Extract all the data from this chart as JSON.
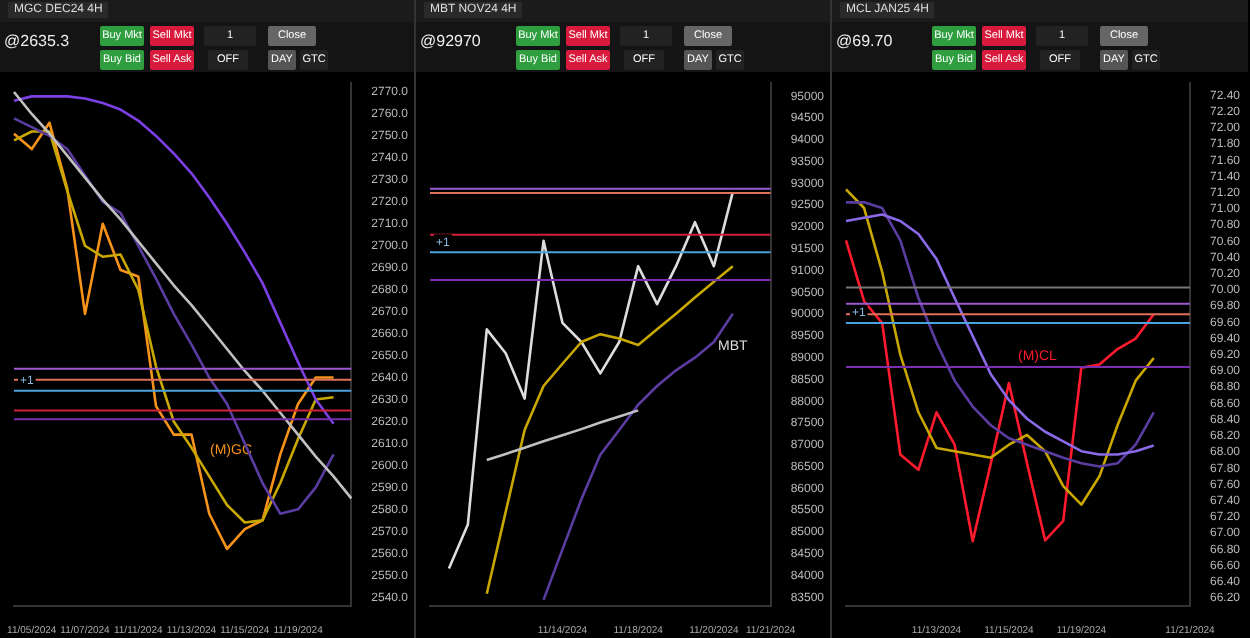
{
  "chart_data": [
    {
      "type": "line",
      "title": "MGC DEC24 4H",
      "subtitle": "@2635.3",
      "marker": "none",
      "grid": false,
      "legend": false,
      "annotations": [
        "Buy Mkt",
        "Sell Mkt",
        "Buy Bid",
        "Sell Ask",
        "1",
        "Close",
        "OFF",
        "DAY",
        "GTC",
        "(M)GC",
        {
          "text": "+1",
          "y": 2634
        }
      ],
      "categories": [
        null,
        "11/05/2024",
        null,
        null,
        "11/07/2024",
        null,
        null,
        "11/11/2024",
        null,
        null,
        "11/13/2024",
        null,
        null,
        "11/15/2024",
        null,
        null,
        "11/19/2024",
        null,
        null,
        null
      ],
      "ylim": [
        2536,
        2774
      ],
      "yticks": [
        {
          "value": 2540,
          "label": "2540.0"
        },
        {
          "value": 2550,
          "label": "2550.0"
        },
        {
          "value": 2560,
          "label": "2560.0"
        },
        {
          "value": 2570,
          "label": "2570.0"
        },
        {
          "value": 2580,
          "label": "2580.0"
        },
        {
          "value": 2590,
          "label": "2590.0"
        },
        {
          "value": 2600,
          "label": "2600.0"
        },
        {
          "value": 2610,
          "label": "2610.0"
        },
        {
          "value": 2620,
          "label": "2620.0"
        },
        {
          "value": 2630,
          "label": "2630.0"
        },
        {
          "value": 2640,
          "label": "2640.0"
        },
        {
          "value": 2650,
          "label": "2650.0"
        },
        {
          "value": 2660,
          "label": "2660.0"
        },
        {
          "value": 2670,
          "label": "2670.0"
        },
        {
          "value": 2680,
          "label": "2680.0"
        },
        {
          "value": 2690,
          "label": "2690.0"
        },
        {
          "value": 2700,
          "label": "2700.0"
        },
        {
          "value": 2710,
          "label": "2710.0"
        },
        {
          "value": 2720,
          "label": "2720.0"
        },
        {
          "value": 2730,
          "label": "2730.0"
        },
        {
          "value": 2740,
          "label": "2740.0"
        },
        {
          "value": 2750,
          "label": "2750.0"
        },
        {
          "value": 2760,
          "label": "2760.0"
        },
        {
          "value": 2770,
          "label": "2770.0"
        }
      ],
      "ref_lines": [
        {
          "axis": "y",
          "value": 2644,
          "color": "#9b59d0"
        },
        {
          "axis": "y",
          "value": 2639,
          "color": "#e0705a"
        },
        {
          "axis": "y",
          "value": 2634,
          "color": "#4aa3df"
        },
        {
          "axis": "y",
          "value": 2625,
          "color": "#d0203a"
        },
        {
          "axis": "y",
          "value": 2621,
          "color": "#7a2fb0"
        }
      ],
      "series": [
        {
          "color": "#c0c0c0",
          "values": [
            2770,
            2760,
            2751,
            2741,
            2731,
            2721,
            2712,
            2702,
            2692,
            2682,
            2673,
            2663,
            2653,
            2643,
            2634,
            2624,
            2614,
            2604,
            2595,
            2585
          ]
        },
        {
          "color": "#7b3fe4",
          "values": [
            2766,
            2768,
            2768,
            2768,
            2767,
            2765,
            2762,
            2757,
            2750,
            2742,
            2733,
            2722,
            2710,
            2697,
            2683,
            2665,
            2647,
            2630,
            2619,
            null
          ]
        },
        {
          "color": "#5b3ca0",
          "values": [
            2758,
            2754,
            2750,
            2744,
            2732,
            2720,
            2715,
            2700,
            2685,
            2669,
            2655,
            2640,
            2628,
            2610,
            2592,
            2578,
            2580,
            2590,
            2605,
            null
          ]
        },
        {
          "color": "#c8a800",
          "values": [
            2748,
            2752,
            2752,
            2725,
            2700,
            2695,
            2696,
            2680,
            2645,
            2620,
            2608,
            2595,
            2582,
            2574,
            2575,
            2592,
            2612,
            2630,
            2631,
            null
          ]
        },
        {
          "color": "#f7931a",
          "values": [
            2751,
            2744,
            2756,
            2726,
            2669,
            2710,
            2689,
            2686,
            2627,
            2614,
            2614,
            2578,
            2562,
            2571,
            2575,
            2605,
            2628,
            2640,
            2640,
            null
          ]
        }
      ]
    },
    {
      "type": "line",
      "title": "MBT NOV24 4H",
      "subtitle": "@92970",
      "marker": "none",
      "grid": false,
      "legend": false,
      "annotations": [
        "Buy Mkt",
        "Sell Mkt",
        "Buy Bid",
        "Sell Ask",
        "1",
        "Close",
        "OFF",
        "DAY",
        "GTC",
        "MBT",
        {
          "text": "+1",
          "y": 91420
        }
      ],
      "categories": [
        null,
        null,
        null,
        null,
        null,
        null,
        null,
        "11/14/2024",
        null,
        null,
        null,
        "11/18/2024",
        null,
        null,
        null,
        "11/20/2024",
        null,
        null,
        "11/21/2024"
      ],
      "ylim": [
        83300,
        95300
      ],
      "yticks": [
        83500,
        84000,
        84500,
        85000,
        85500,
        86000,
        86500,
        87000,
        87500,
        88000,
        88500,
        89000,
        89500,
        90000,
        90500,
        91000,
        91500,
        92000,
        92500,
        93000,
        93500,
        94000,
        94500,
        95000
      ],
      "ref_lines": [
        {
          "axis": "y",
          "value": 92880,
          "color": "#9b59d0"
        },
        {
          "axis": "y",
          "value": 92780,
          "color": "#e0705a"
        },
        {
          "axis": "y",
          "value": 91820,
          "color": "#d0203a"
        },
        {
          "axis": "y",
          "value": 91420,
          "color": "#4aa3df"
        },
        {
          "axis": "y",
          "value": 90780,
          "color": "#7a2fb0"
        }
      ],
      "series": [
        {
          "color": "#c0c0c0",
          "values": [
            null,
            null,
            null,
            86650,
            86790,
            86930,
            87080,
            87220,
            87360,
            87510,
            87650,
            87790,
            null,
            null,
            null,
            null,
            null,
            null,
            null
          ]
        },
        {
          "color": "#5b3ca0",
          "values": [
            null,
            null,
            null,
            null,
            null,
            null,
            83440,
            84600,
            85750,
            86770,
            87340,
            87920,
            88350,
            88710,
            89000,
            89360,
            90010,
            null,
            null
          ]
        },
        {
          "color": "#c8a800",
          "values": [
            null,
            null,
            null,
            83580,
            85460,
            87340,
            88350,
            88860,
            89360,
            89540,
            89440,
            89290,
            89650,
            90010,
            90380,
            90740,
            91100,
            null,
            null
          ]
        },
        {
          "color": "#dddddd",
          "values": [
            null,
            84160,
            85170,
            89650,
            89100,
            88060,
            91680,
            89800,
            89360,
            88640,
            89360,
            91100,
            90230,
            91100,
            92110,
            91100,
            92800,
            null,
            null
          ]
        }
      ]
    },
    {
      "type": "line",
      "title": "MCL JAN25 4H",
      "subtitle": "@69.70",
      "marker": "none",
      "grid": false,
      "legend": false,
      "annotations": [
        "Buy Mkt",
        "Sell Mkt",
        "Buy Bid",
        "Sell Ask",
        "1",
        "Close",
        "OFF",
        "DAY",
        "GTC",
        "(M)CL",
        {
          "text": "+1",
          "y": 69.59
        }
      ],
      "categories": [
        null,
        null,
        null,
        null,
        null,
        "11/13/2024",
        null,
        null,
        null,
        "11/15/2024",
        null,
        null,
        null,
        "11/19/2024",
        null,
        null,
        null,
        null,
        null,
        "11/21/2024"
      ],
      "ylim": [
        66.1,
        72.55
      ],
      "yticks": [
        {
          "value": 66.2,
          "label": "66.20"
        },
        {
          "value": 66.4,
          "label": "66.40"
        },
        {
          "value": 66.6,
          "label": "66.60"
        },
        {
          "value": 66.8,
          "label": "66.80"
        },
        {
          "value": 67,
          "label": "67.00"
        },
        {
          "value": 67.2,
          "label": "67.20"
        },
        {
          "value": 67.4,
          "label": "67.40"
        },
        {
          "value": 67.6,
          "label": "67.60"
        },
        {
          "value": 67.8,
          "label": "67.80"
        },
        {
          "value": 68,
          "label": "68.00"
        },
        {
          "value": 68.2,
          "label": "68.20"
        },
        {
          "value": 68.4,
          "label": "68.40"
        },
        {
          "value": 68.6,
          "label": "68.60"
        },
        {
          "value": 68.8,
          "label": "68.80"
        },
        {
          "value": 69,
          "label": "69.00"
        },
        {
          "value": 69.2,
          "label": "69.20"
        },
        {
          "value": 69.4,
          "label": "69.40"
        },
        {
          "value": 69.6,
          "label": "69.60"
        },
        {
          "value": 69.8,
          "label": "69.80"
        },
        {
          "value": 70,
          "label": "70.00"
        },
        {
          "value": 70.2,
          "label": "70.20"
        },
        {
          "value": 70.4,
          "label": "70.40"
        },
        {
          "value": 70.6,
          "label": "70.60"
        },
        {
          "value": 70.8,
          "label": "70.80"
        },
        {
          "value": 71,
          "label": "71.00"
        },
        {
          "value": 71.2,
          "label": "71.20"
        },
        {
          "value": 71.4,
          "label": "71.40"
        },
        {
          "value": 71.6,
          "label": "71.60"
        },
        {
          "value": 71.8,
          "label": "71.80"
        },
        {
          "value": 72,
          "label": "72.00"
        },
        {
          "value": 72.2,
          "label": "72.20"
        },
        {
          "value": 72.4,
          "label": "72.40"
        }
      ],
      "ref_lines": [
        {
          "axis": "y",
          "value": 70.03,
          "color": "#777777"
        },
        {
          "axis": "y",
          "value": 69.83,
          "color": "#9b59d0"
        },
        {
          "axis": "y",
          "value": 69.7,
          "color": "#e0705a"
        },
        {
          "axis": "y",
          "value": 69.59,
          "color": "#4aa3df"
        },
        {
          "axis": "y",
          "value": 69.05,
          "color": "#7a2fb0"
        }
      ],
      "series": [
        {
          "color": "#8a6ae8",
          "values": [
            70.85,
            70.89,
            70.93,
            70.85,
            70.69,
            70.38,
            69.9,
            69.43,
            68.96,
            68.64,
            68.41,
            68.25,
            68.13,
            68.01,
            67.97,
            67.97,
            68.01,
            68.08,
            null,
            null
          ]
        },
        {
          "color": "#5b3ca0",
          "values": [
            71.08,
            71.08,
            71.01,
            70.61,
            69.9,
            69.35,
            68.88,
            68.56,
            68.33,
            68.17,
            68.09,
            68.01,
            67.93,
            67.86,
            67.82,
            67.86,
            68.09,
            68.49,
            null,
            null
          ]
        },
        {
          "color": "#c8a800",
          "values": [
            71.24,
            71.01,
            70.22,
            69.2,
            68.49,
            68.05,
            68.01,
            67.97,
            67.93,
            68.09,
            68.21,
            68.01,
            67.58,
            67.35,
            67.7,
            68.33,
            68.88,
            69.16,
            null,
            null
          ]
        },
        {
          "color": "#ff1a2e",
          "values": [
            70.61,
            69.86,
            69.59,
            67.97,
            67.78,
            68.49,
            68.09,
            66.9,
            67.86,
            68.85,
            67.86,
            66.91,
            67.15,
            69.04,
            69.08,
            69.27,
            69.4,
            69.7,
            null,
            null
          ]
        }
      ]
    }
  ]
}
